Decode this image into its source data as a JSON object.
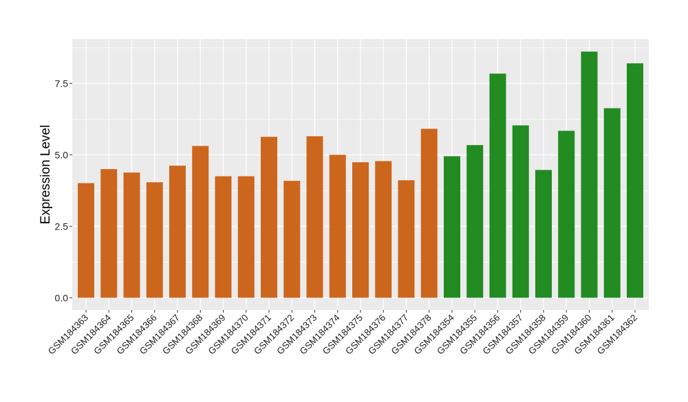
{
  "chart_data": {
    "type": "bar",
    "title": "",
    "xlabel": "",
    "ylabel": "Expression Level",
    "ylim": [
      -0.45,
      9.0
    ],
    "yticks": [
      0.0,
      2.5,
      5.0,
      7.5
    ],
    "ytick_labels": [
      "0.0",
      "2.5",
      "5.0",
      "7.5"
    ],
    "grid": true,
    "legend": "none",
    "categories": [
      "GSM184363",
      "GSM184364",
      "GSM184365",
      "GSM184366",
      "GSM184367",
      "GSM184368",
      "GSM184369",
      "GSM184370",
      "GSM184371",
      "GSM184372",
      "GSM184373",
      "GSM184374",
      "GSM184375",
      "GSM184376",
      "GSM184377",
      "GSM184378",
      "GSM184354",
      "GSM184355",
      "GSM184356",
      "GSM184357",
      "GSM184358",
      "GSM184359",
      "GSM184360",
      "GSM184361",
      "GSM184362"
    ],
    "values": [
      4.01,
      4.5,
      4.38,
      4.04,
      4.62,
      5.31,
      4.25,
      4.25,
      5.63,
      4.09,
      5.65,
      5.0,
      4.74,
      4.78,
      4.11,
      5.91,
      4.95,
      5.34,
      7.84,
      6.03,
      4.47,
      5.84,
      8.61,
      6.63,
      8.2
    ],
    "groups": [
      "a",
      "a",
      "a",
      "a",
      "a",
      "a",
      "a",
      "a",
      "a",
      "a",
      "a",
      "a",
      "a",
      "a",
      "a",
      "a",
      "b",
      "b",
      "b",
      "b",
      "b",
      "b",
      "b",
      "b",
      "b"
    ],
    "colors": {
      "a": "#CD661D",
      "b": "#228B22"
    },
    "panel_background": "#EBEBEB",
    "grid_color": "#FFFFFF"
  }
}
